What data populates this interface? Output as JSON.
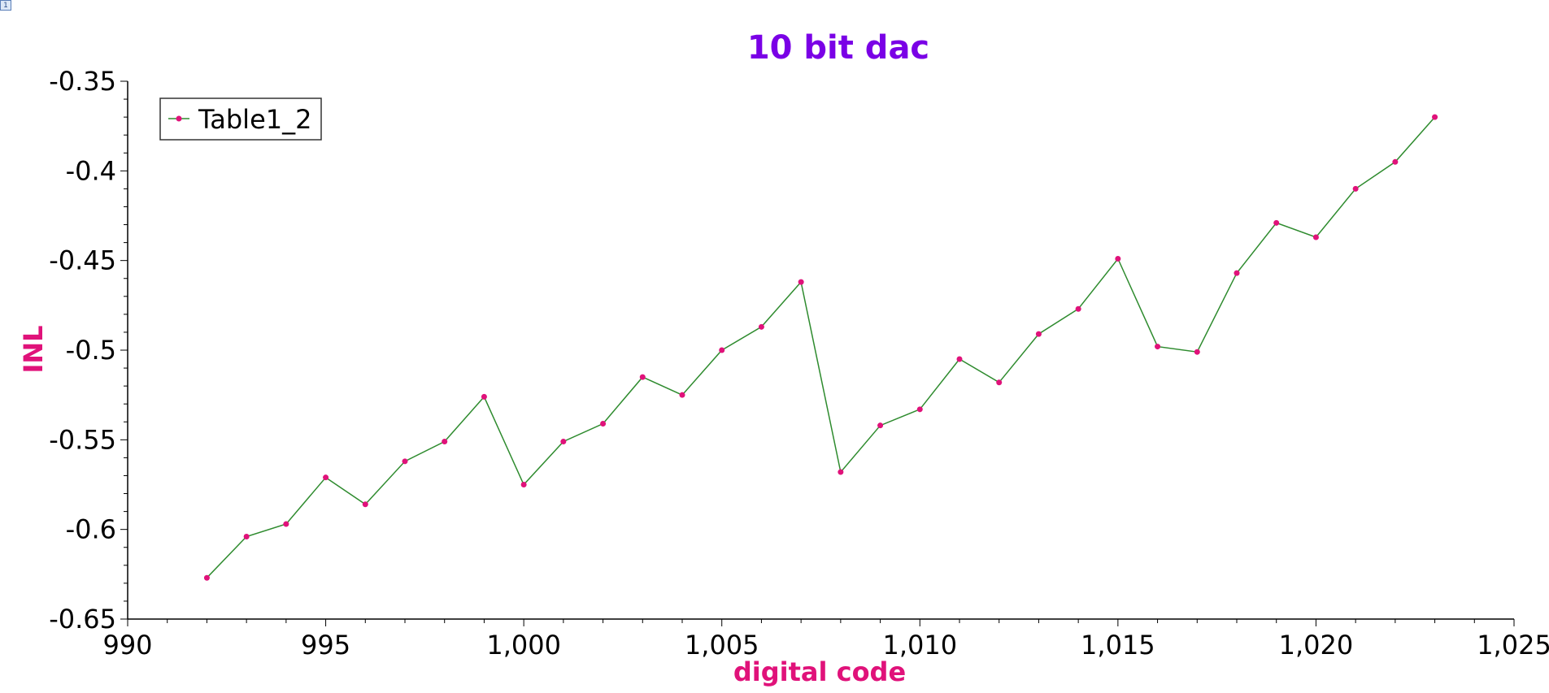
{
  "page_badge": "1",
  "colors": {
    "title": "#7a00e6",
    "axis_title": "#e0127a",
    "series_line": "#2e8b2e",
    "series_marker": "#e0127a",
    "axis": "#000000"
  },
  "chart_data": {
    "type": "line",
    "title": "10 bit dac",
    "xlabel": "digital code",
    "ylabel": "INL",
    "xlim": [
      990,
      1025
    ],
    "ylim": [
      -0.65,
      -0.35
    ],
    "x_ticks": [
      990,
      995,
      1000,
      1005,
      1010,
      1015,
      1020,
      1025
    ],
    "x_tick_labels": [
      "990",
      "995",
      "1,000",
      "1,005",
      "1,010",
      "1,015",
      "1,020",
      "1,025"
    ],
    "y_ticks": [
      -0.35,
      -0.4,
      -0.45,
      -0.5,
      -0.55,
      -0.6,
      -0.65
    ],
    "y_tick_labels": [
      "-0.35",
      "-0.4",
      "-0.45",
      "-0.5",
      "-0.55",
      "-0.6",
      "-0.65"
    ],
    "grid": false,
    "legend": {
      "position": "top-left",
      "entries": [
        "Table1_2"
      ]
    },
    "series": [
      {
        "name": "Table1_2",
        "x": [
          992,
          993,
          994,
          995,
          996,
          997,
          998,
          999,
          1000,
          1001,
          1002,
          1003,
          1004,
          1005,
          1006,
          1007,
          1008,
          1009,
          1010,
          1011,
          1012,
          1013,
          1014,
          1015,
          1016,
          1017,
          1018,
          1019,
          1020,
          1021,
          1022,
          1023
        ],
        "y": [
          -0.627,
          -0.604,
          -0.597,
          -0.571,
          -0.586,
          -0.562,
          -0.551,
          -0.526,
          -0.575,
          -0.551,
          -0.541,
          -0.515,
          -0.525,
          -0.5,
          -0.487,
          -0.462,
          -0.568,
          -0.542,
          -0.533,
          -0.505,
          -0.518,
          -0.491,
          -0.477,
          -0.449,
          -0.498,
          -0.501,
          -0.457,
          -0.429,
          -0.437,
          -0.41,
          -0.395,
          -0.37
        ]
      }
    ]
  }
}
